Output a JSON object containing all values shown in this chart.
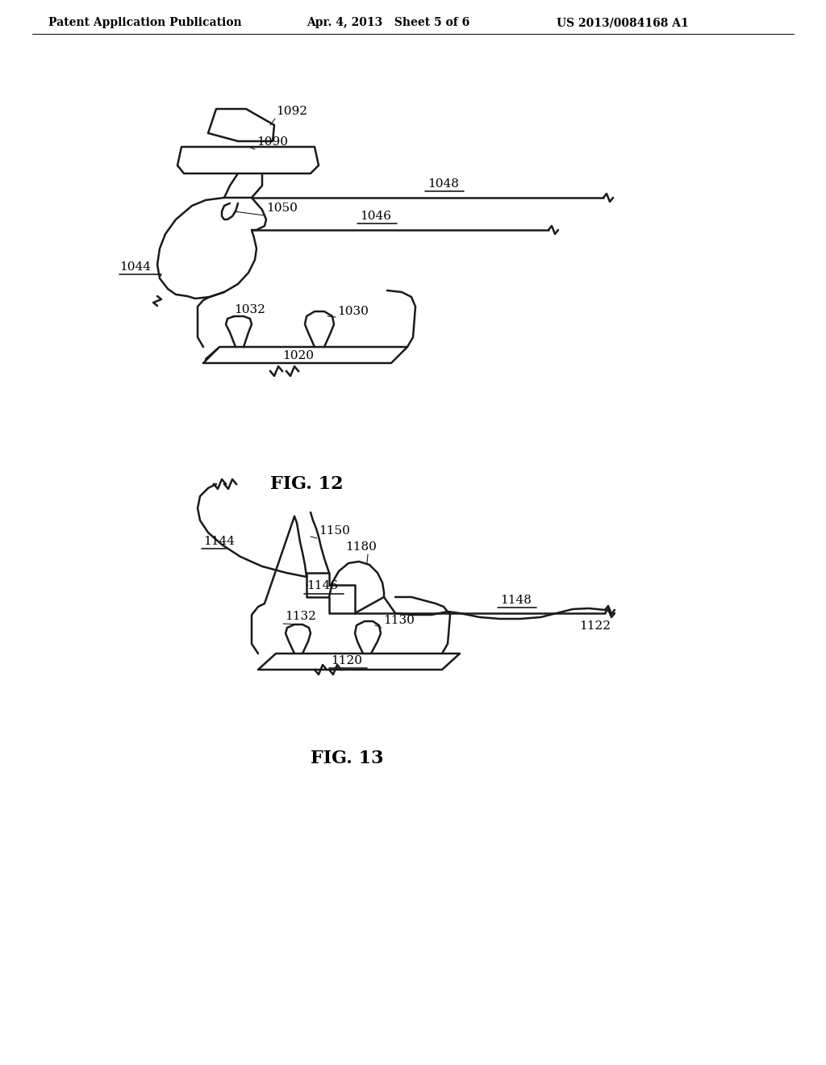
{
  "header_left": "Patent Application Publication",
  "header_mid": "Apr. 4, 2013   Sheet 5 of 6",
  "header_right": "US 2013/0084168 A1",
  "fig12_label": "FIG. 12",
  "fig13_label": "FIG. 13",
  "background": "#ffffff",
  "line_color": "#1a1a1a",
  "text_color": "#000000"
}
